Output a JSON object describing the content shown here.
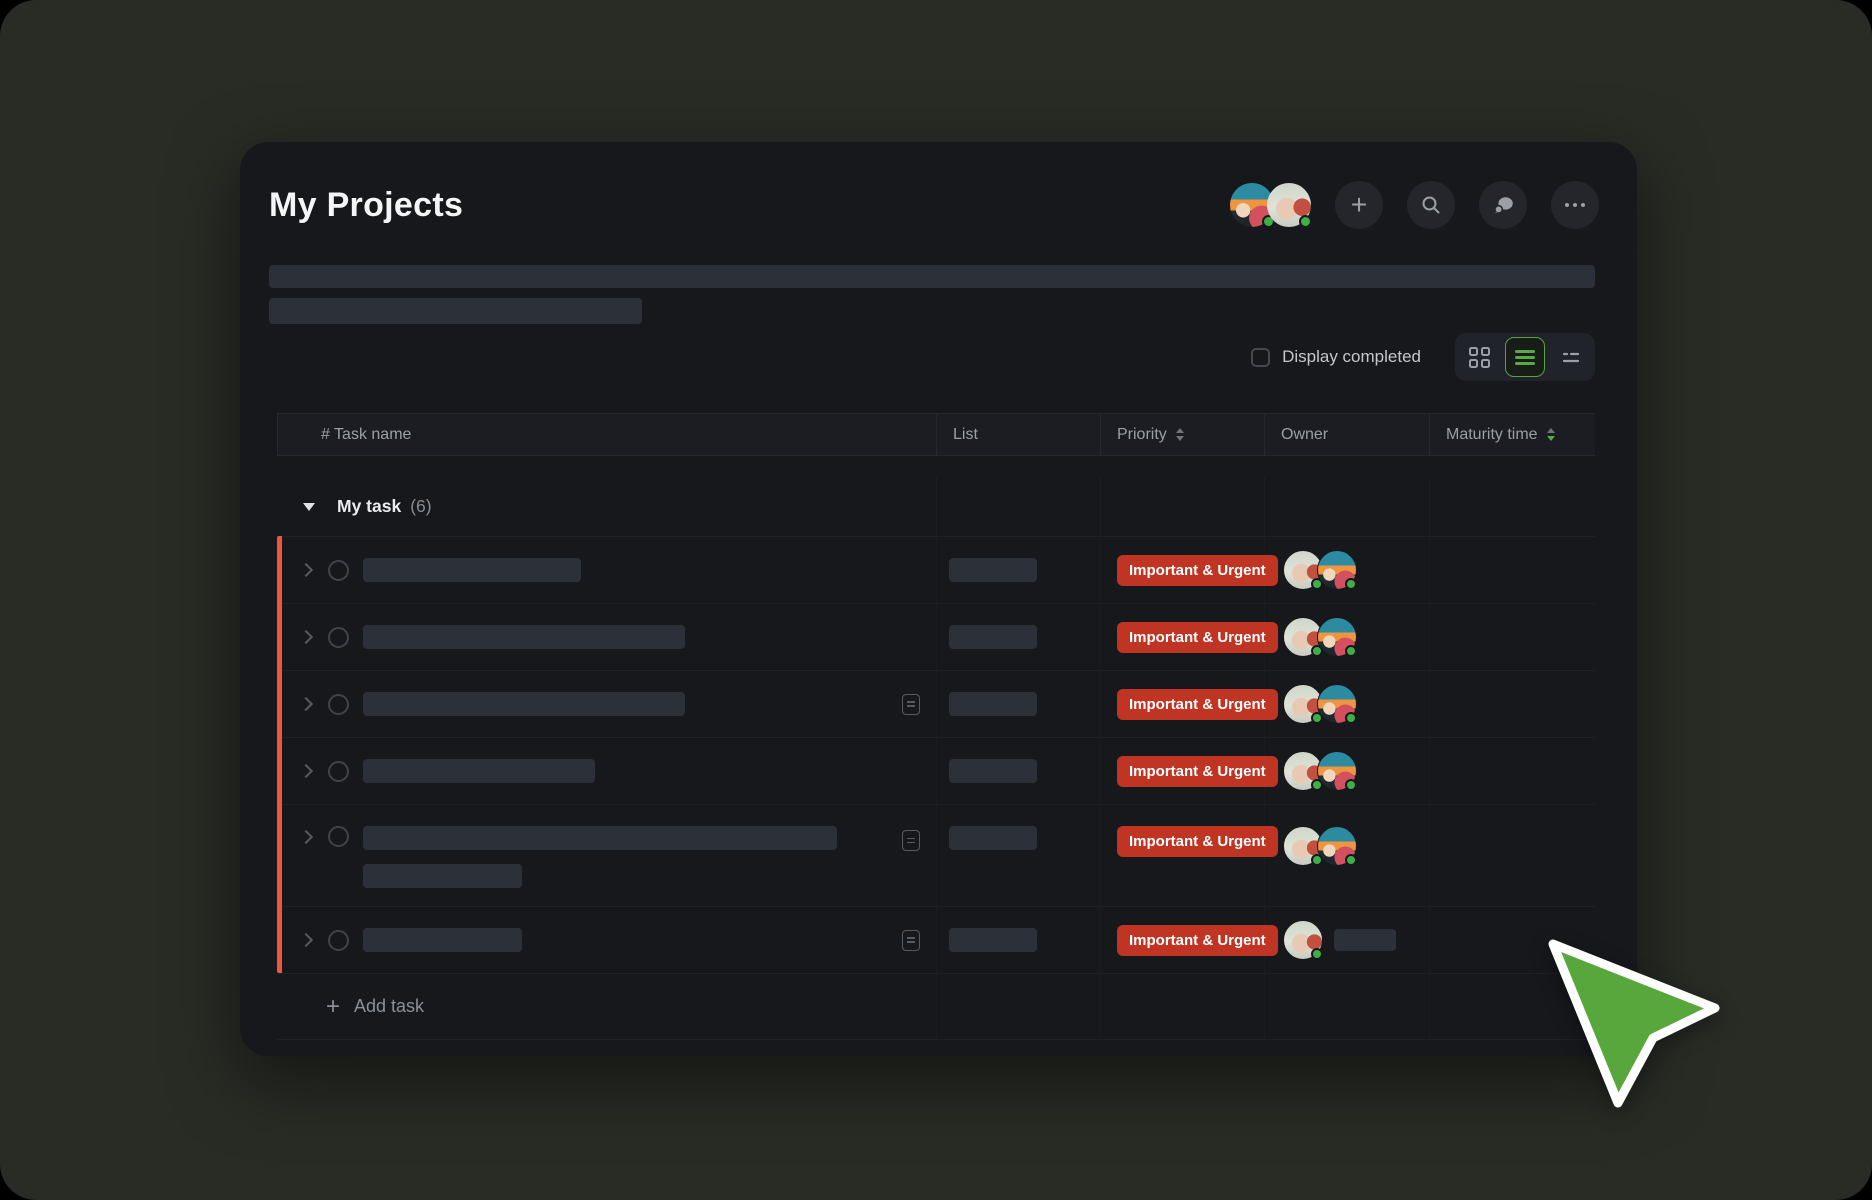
{
  "page": {
    "title": "My Projects"
  },
  "header": {
    "avatars": [
      {
        "id": "anime",
        "status": "online"
      },
      {
        "id": "baby",
        "status": "online"
      }
    ],
    "actions": [
      {
        "id": "add",
        "icon": "plus-icon"
      },
      {
        "id": "search",
        "icon": "search-icon"
      },
      {
        "id": "chat",
        "icon": "chat-bubbles-icon"
      },
      {
        "id": "more",
        "icon": "ellipsis-icon"
      }
    ]
  },
  "toolbar": {
    "display_completed_label": "Display completed",
    "display_completed_checked": false,
    "views": [
      {
        "id": "grid",
        "active": false
      },
      {
        "id": "list",
        "active": true
      },
      {
        "id": "sort-lines",
        "active": false
      }
    ]
  },
  "table": {
    "columns": [
      {
        "label": "# Task name",
        "sort": null
      },
      {
        "label": "List",
        "sort": null
      },
      {
        "label": "Priority",
        "sort": "inactive"
      },
      {
        "label": "Owner",
        "sort": null
      },
      {
        "label": "Maturity time",
        "sort": "desc-active"
      }
    ],
    "group": {
      "label": "My task",
      "count": "(6)"
    },
    "rows": [
      {
        "skeleton_widths": [
          218
        ],
        "note_icon": false,
        "priority": "Important & Urgent",
        "owners": [
          "baby",
          "anime"
        ],
        "owner_name_skeleton": false,
        "maturity": ""
      },
      {
        "skeleton_widths": [
          322
        ],
        "note_icon": false,
        "priority": "Important & Urgent",
        "owners": [
          "baby",
          "anime"
        ],
        "owner_name_skeleton": false,
        "maturity": ""
      },
      {
        "skeleton_widths": [
          322
        ],
        "note_icon": true,
        "priority": "Important & Urgent",
        "owners": [
          "baby",
          "anime"
        ],
        "owner_name_skeleton": false,
        "maturity": ""
      },
      {
        "skeleton_widths": [
          232
        ],
        "note_icon": false,
        "priority": "Important & Urgent",
        "owners": [
          "baby",
          "anime"
        ],
        "owner_name_skeleton": false,
        "maturity": ""
      },
      {
        "skeleton_widths": [
          474,
          159
        ],
        "note_icon": true,
        "priority": "Important & Urgent",
        "owners": [
          "baby",
          "anime"
        ],
        "owner_name_skeleton": false,
        "maturity": ""
      },
      {
        "skeleton_widths": [
          159
        ],
        "note_icon": true,
        "priority": "Important & Urgent",
        "owners": [
          "baby"
        ],
        "owner_name_skeleton": true,
        "maturity": ""
      }
    ],
    "add_task_label": "Add task"
  },
  "colors": {
    "accent_orange": "#f0563f",
    "badge_red": "#bf3423",
    "active_green": "#57a245",
    "online_green": "#3fae47",
    "cursor_green": "#58a73d"
  }
}
